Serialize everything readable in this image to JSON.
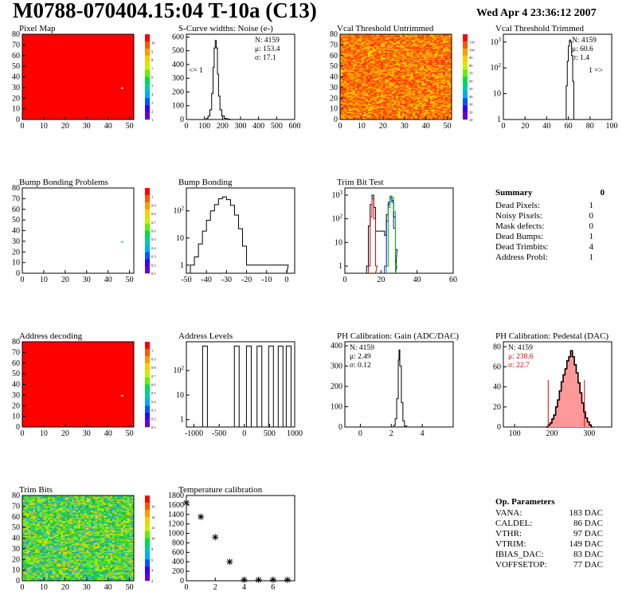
{
  "header": {
    "title": "M0788-070404.15:04 T-10a (C13)",
    "date": "Wed Apr  4 23:36:12 2007"
  },
  "colors": {
    "hist_line": "#000000",
    "hot_red": "#ff0000",
    "trim_red": "#d40000",
    "trim_blue": "#0000ff",
    "trim_green": "#00c000",
    "pedestal_fill": "#ff9999",
    "stat_red": "#e00000"
  },
  "chart_data": [
    {
      "id": "pixel-map",
      "type": "heatmap",
      "title": "Pixel Map",
      "x_ticks": [
        "0",
        "10",
        "20",
        "30",
        "40",
        "50"
      ],
      "y_ticks": [
        "0",
        "10",
        "20",
        "30",
        "40",
        "50",
        "60",
        "70",
        "80"
      ],
      "xlim": [
        0,
        52
      ],
      "ylim": [
        0,
        80
      ],
      "fill": "uniform_red",
      "marks": [
        {
          "x": 46,
          "y": 30,
          "color": "white"
        }
      ],
      "zlim": [
        0,
        10
      ],
      "palette_ticks": [
        "1",
        "2",
        "3",
        "4",
        "5",
        "6",
        "7",
        "8",
        "9",
        "10"
      ]
    },
    {
      "id": "scurve-widths",
      "type": "histogram",
      "title": "S-Curve widths: Noise (e-)",
      "x_ticks": [
        "0",
        "100",
        "200",
        "300",
        "400",
        "500",
        "600"
      ],
      "y_ticks": [
        "0",
        "100",
        "200",
        "300",
        "400",
        "500",
        "600"
      ],
      "xlim": [
        0,
        600
      ],
      "ylim": [
        0,
        620
      ],
      "stats": [
        "N: 4159",
        "μ: 153.4",
        "σ: 17.1"
      ],
      "overflow_label": "<= 1",
      "bins": [
        [
          95,
          0
        ],
        [
          110,
          8
        ],
        [
          120,
          25
        ],
        [
          130,
          70
        ],
        [
          140,
          190
        ],
        [
          148,
          380
        ],
        [
          154,
          520
        ],
        [
          160,
          575
        ],
        [
          166,
          520
        ],
        [
          172,
          330
        ],
        [
          178,
          170
        ],
        [
          186,
          70
        ],
        [
          196,
          25
        ],
        [
          210,
          8
        ],
        [
          225,
          3
        ],
        [
          240,
          0
        ]
      ]
    },
    {
      "id": "vcal-untrimmed",
      "type": "heatmap",
      "title": "Vcal Threshold Untrimmed",
      "x_ticks": [
        "0",
        "10",
        "20",
        "30",
        "40",
        "50"
      ],
      "y_ticks": [
        "0",
        "10",
        "20",
        "30",
        "40",
        "50",
        "60",
        "70",
        "80"
      ],
      "xlim": [
        0,
        52
      ],
      "ylim": [
        0,
        80
      ],
      "fill": "noise_orange",
      "zlim": [
        0,
        110
      ],
      "palette_ticks": [
        "10",
        "20",
        "30",
        "40",
        "50",
        "60",
        "70",
        "80",
        "90",
        "100",
        "110"
      ]
    },
    {
      "id": "vcal-trimmed",
      "type": "histogram",
      "title": "Vcal Threshold Trimmed",
      "log_y": true,
      "x_ticks": [
        "0",
        "20",
        "40",
        "60",
        "80",
        "100"
      ],
      "y_ticks": [
        "1",
        "10",
        "10^2",
        "10^3"
      ],
      "xlim": [
        0,
        100
      ],
      "ylim_log": [
        1,
        2000
      ],
      "stats": [
        "N: 4159",
        "μ: 60.6",
        "σ:  1.4"
      ],
      "overflow_label": "1 =>",
      "bins": [
        [
          57,
          1
        ],
        [
          58,
          20
        ],
        [
          59,
          180
        ],
        [
          60,
          700
        ],
        [
          61,
          1200
        ],
        [
          62,
          1000
        ],
        [
          63,
          300
        ],
        [
          64,
          30
        ],
        [
          65,
          1
        ]
      ]
    },
    {
      "id": "bump-problems",
      "type": "heatmap",
      "title": "Bump Bonding Problems",
      "x_ticks": [
        "0",
        "10",
        "20",
        "30",
        "40",
        "50"
      ],
      "y_ticks": [
        "0",
        "10",
        "20",
        "30",
        "40",
        "50",
        "60",
        "70",
        "80"
      ],
      "xlim": [
        0,
        52
      ],
      "ylim": [
        0,
        80
      ],
      "fill": "empty",
      "marks": [
        {
          "x": 46,
          "y": 30,
          "color": "#33dd33"
        }
      ],
      "zlim": [
        0,
        1
      ],
      "palette_ticks": [
        "0.1",
        "0.2",
        "0.3",
        "0.4",
        "0.5",
        "0.6",
        "0.7",
        "0.8",
        "0.9",
        "1"
      ]
    },
    {
      "id": "bump-bonding",
      "type": "histogram",
      "title": "Bump Bonding",
      "log_y": true,
      "x_ticks": [
        "-50",
        "-40",
        "-30",
        "-20",
        "-10",
        "0"
      ],
      "y_ticks": [
        "1",
        "10",
        "10^2"
      ],
      "xlim": [
        -50,
        4
      ],
      "ylim_log": [
        0.5,
        700
      ],
      "bins": [
        [
          -48,
          1
        ],
        [
          -46,
          2
        ],
        [
          -44,
          6
        ],
        [
          -42,
          18
        ],
        [
          -40,
          45
        ],
        [
          -38,
          100
        ],
        [
          -36,
          170
        ],
        [
          -34,
          280
        ],
        [
          -32,
          330
        ],
        [
          -30,
          260
        ],
        [
          -28,
          160
        ],
        [
          -26,
          70
        ],
        [
          -24,
          22
        ],
        [
          -22,
          5
        ],
        [
          -20,
          1
        ],
        [
          0,
          1
        ]
      ]
    },
    {
      "id": "trim-bit-test",
      "type": "histogram",
      "title": "Trim Bit Test",
      "log_y": true,
      "x_ticks": [
        "0",
        "20",
        "40",
        "60"
      ],
      "y_ticks": [
        "1",
        "10",
        "10^2",
        "10^3"
      ],
      "xlim": [
        0,
        60
      ],
      "ylim_log": [
        0.5,
        2000
      ],
      "series": [
        {
          "color": "#000000",
          "bins": [
            [
              12,
              1
            ],
            [
              13,
              50
            ],
            [
              14,
              400
            ],
            [
              15,
              1000
            ],
            [
              16,
              300
            ],
            [
              17,
              30
            ],
            [
              22,
              20
            ],
            [
              23,
              150
            ],
            [
              24,
              500
            ],
            [
              25,
              900
            ],
            [
              26,
              600
            ],
            [
              27,
              120
            ],
            [
              28,
              5
            ]
          ]
        },
        {
          "color": "#d40000",
          "bins": [
            [
              13,
              1
            ],
            [
              14,
              120
            ],
            [
              15,
              700
            ],
            [
              16,
              100
            ],
            [
              17,
              1
            ]
          ]
        },
        {
          "color": "#0000ff",
          "bins": [
            [
              22,
              1
            ],
            [
              23,
              80
            ],
            [
              24,
              400
            ],
            [
              25,
              800
            ],
            [
              26,
              500
            ],
            [
              27,
              40
            ],
            [
              28,
              1
            ]
          ]
        },
        {
          "color": "#00c000",
          "bins": [
            [
              23,
              1
            ],
            [
              24,
              300
            ],
            [
              25,
              900
            ],
            [
              26,
              800
            ],
            [
              27,
              200
            ],
            [
              28,
              1
            ]
          ]
        }
      ]
    },
    {
      "id": "address-decoding",
      "type": "heatmap",
      "title": "Address decoding",
      "x_ticks": [
        "0",
        "10",
        "20",
        "30",
        "40",
        "50"
      ],
      "y_ticks": [
        "0",
        "10",
        "20",
        "30",
        "40",
        "50",
        "60",
        "70",
        "80"
      ],
      "xlim": [
        0,
        52
      ],
      "ylim": [
        0,
        80
      ],
      "fill": "uniform_red",
      "marks": [
        {
          "x": 46,
          "y": 30,
          "color": "white"
        }
      ],
      "zlim": [
        0,
        1
      ],
      "palette_ticks": [
        "0.1",
        "0.2",
        "0.3",
        "0.4",
        "0.5",
        "0.6",
        "0.7",
        "0.8",
        "0.9",
        "1"
      ]
    },
    {
      "id": "address-levels",
      "type": "histogram",
      "title": "Address Levels",
      "log_y": true,
      "x_ticks": [
        "-1000",
        "-500",
        "0",
        "500",
        "1000"
      ],
      "y_ticks": [
        "1",
        "10",
        "10^2"
      ],
      "xlim": [
        -1150,
        1000
      ],
      "ylim_log": [
        0.5,
        1500
      ],
      "peaks": [
        -780,
        -150,
        90,
        300,
        530,
        720,
        880
      ],
      "peak_height": 1000
    },
    {
      "id": "ph-gain",
      "type": "histogram",
      "title": "PH Calibration: Gain (ADC/DAC)",
      "x_ticks": [
        "0",
        "2",
        "4"
      ],
      "y_ticks": [
        "0",
        "100",
        "200",
        "300",
        "400"
      ],
      "xlim": [
        -1,
        6
      ],
      "ylim": [
        0,
        420
      ],
      "stats": [
        "N: 4159",
        "μ: 2.49",
        "σ: 0.12"
      ],
      "bins": [
        [
          2.05,
          0
        ],
        [
          2.15,
          8
        ],
        [
          2.25,
          40
        ],
        [
          2.35,
          140
        ],
        [
          2.45,
          330
        ],
        [
          2.5,
          380
        ],
        [
          2.55,
          300
        ],
        [
          2.65,
          120
        ],
        [
          2.75,
          30
        ],
        [
          2.85,
          5
        ],
        [
          3.0,
          0
        ]
      ]
    },
    {
      "id": "ph-pedestal",
      "type": "histogram",
      "title": "PH Calibration: Pedestal (DAC)",
      "x_ticks": [
        "100",
        "200",
        "300"
      ],
      "y_ticks": [
        "0",
        "20",
        "40",
        "60",
        "80"
      ],
      "xlim": [
        70,
        360
      ],
      "ylim": [
        0,
        85
      ],
      "stats": [
        "N: 4159",
        "μ: 238.6",
        "σ: 22.7"
      ],
      "stats_colors": [
        "#000000",
        "#e00000",
        "#e00000"
      ],
      "cut_lines": [
        190,
        287
      ],
      "bins": [
        [
          185,
          0
        ],
        [
          190,
          2
        ],
        [
          195,
          4
        ],
        [
          200,
          8
        ],
        [
          205,
          12
        ],
        [
          210,
          20
        ],
        [
          215,
          27
        ],
        [
          220,
          36
        ],
        [
          225,
          45
        ],
        [
          230,
          52
        ],
        [
          235,
          58
        ],
        [
          240,
          66
        ],
        [
          245,
          70
        ],
        [
          250,
          76
        ],
        [
          255,
          70
        ],
        [
          260,
          62
        ],
        [
          265,
          54
        ],
        [
          270,
          44
        ],
        [
          275,
          34
        ],
        [
          280,
          24
        ],
        [
          285,
          15
        ],
        [
          290,
          9
        ],
        [
          295,
          5
        ],
        [
          300,
          2
        ],
        [
          305,
          0
        ]
      ]
    },
    {
      "id": "trim-bits",
      "type": "heatmap",
      "title": "Trim Bits",
      "x_ticks": [
        "0",
        "10",
        "20",
        "30",
        "40",
        "50"
      ],
      "y_ticks": [
        "0",
        "10",
        "20",
        "30",
        "40",
        "50",
        "60",
        "70",
        "80"
      ],
      "xlim": [
        0,
        52
      ],
      "ylim": [
        0,
        80
      ],
      "fill": "noise_green",
      "zlim": [
        0,
        16
      ],
      "palette_ticks": [
        "2",
        "4",
        "6",
        "8",
        "10",
        "12",
        "14",
        "16"
      ]
    },
    {
      "id": "temperature",
      "type": "scatter",
      "title": "Temperature calibration",
      "x_ticks": [
        "0",
        "2",
        "4",
        "6"
      ],
      "y_ticks": [
        "0",
        "200",
        "400",
        "600",
        "800",
        "1000",
        "1200",
        "1400",
        "1600",
        "1800"
      ],
      "xlim": [
        0,
        7.5
      ],
      "ylim": [
        0,
        1800
      ],
      "points": [
        [
          0,
          1650
        ],
        [
          1,
          1350
        ],
        [
          2,
          920
        ],
        [
          3,
          400
        ],
        [
          4,
          20
        ],
        [
          5,
          20
        ],
        [
          6,
          20
        ],
        [
          7,
          20
        ]
      ]
    }
  ],
  "summary": {
    "title": "Summary",
    "total": "0",
    "rows": [
      {
        "label": "Dead Pixels:",
        "value": "1"
      },
      {
        "label": "Noisy Pixels:",
        "value": "0"
      },
      {
        "label": "Mask defects:",
        "value": "0"
      },
      {
        "label": "Dead Bumps:",
        "value": "1"
      },
      {
        "label": "Dead Trimbits:",
        "value": "4"
      },
      {
        "label": "Address Probl:",
        "value": "1"
      }
    ]
  },
  "op_params": {
    "title": "Op. Parameters",
    "rows": [
      {
        "label": "VANA:",
        "value": "183 DAC"
      },
      {
        "label": "CALDEL:",
        "value": "86 DAC"
      },
      {
        "label": "VTHR:",
        "value": "97 DAC"
      },
      {
        "label": "VTRIM:",
        "value": "149 DAC"
      },
      {
        "label": "IBIAS_DAC:",
        "value": "83 DAC"
      },
      {
        "label": "VOFFSETOP:",
        "value": "77 DAC"
      }
    ]
  }
}
